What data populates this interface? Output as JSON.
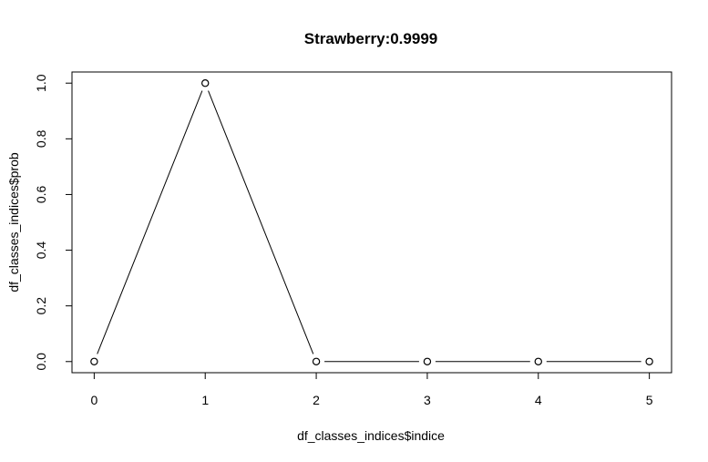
{
  "chart_data": {
    "type": "line",
    "title": "Strawberry:0.9999",
    "xlabel": "df_classes_indices$indice",
    "ylabel": "df_classes_indices$prob",
    "x": [
      0,
      1,
      2,
      3,
      4,
      5
    ],
    "y": [
      0.0,
      1.0,
      0.0,
      0.0,
      0.0,
      0.0
    ],
    "xlim": [
      -0.2,
      5.2
    ],
    "ylim": [
      -0.04,
      1.04
    ],
    "xticks": [
      0,
      1,
      2,
      3,
      4,
      5
    ],
    "xtick_labels": [
      "0",
      "1",
      "2",
      "3",
      "4",
      "5"
    ],
    "yticks": [
      0.0,
      0.2,
      0.4,
      0.6,
      0.8,
      1.0
    ],
    "ytick_labels": [
      "0.0",
      "0.2",
      "0.4",
      "0.6",
      "0.8",
      "1.0"
    ],
    "marker": "open-circle",
    "line_style": "type-b",
    "grid": false,
    "colors": {
      "line": "#000000",
      "point_fill": "#ffffff",
      "point_stroke": "#000000",
      "background": "#ffffff"
    }
  }
}
